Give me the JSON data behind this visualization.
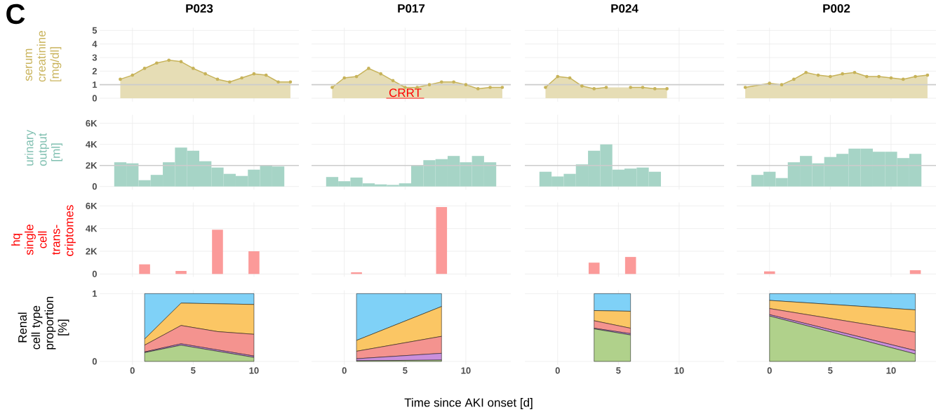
{
  "chart_data": [
    {
      "type": "area",
      "title": "P023",
      "ylabel": "serum creatinine [mg/dl]",
      "annotations": [
        "C"
      ],
      "x": [
        -1,
        0,
        1,
        2,
        3,
        4,
        5,
        6,
        7,
        8,
        9,
        10,
        11,
        12,
        13
      ],
      "values": [
        1.4,
        1.7,
        2.2,
        2.6,
        2.8,
        2.7,
        2.2,
        1.8,
        1.4,
        1.2,
        1.5,
        1.8,
        1.7,
        1.2,
        1.2
      ],
      "color": "#c7b35a",
      "marker": "circle",
      "xlim": [
        -2.7,
        13.7
      ],
      "xticks": [
        0,
        5,
        10
      ],
      "ylim": [
        -0.25,
        5.2
      ],
      "yticks": [
        0,
        1,
        2,
        3,
        4,
        5
      ],
      "tick_labels": "y",
      "grid": true,
      "ref_lines": [
        {
          "axis": "y",
          "value": 1,
          "color": "#cccccc"
        }
      ]
    },
    {
      "type": "area",
      "title": "P017",
      "annotations": [
        "CRRT"
      ],
      "x": [
        -1,
        0,
        1,
        2,
        3,
        4,
        5,
        6,
        7,
        8,
        9,
        10,
        11,
        12,
        13
      ],
      "values": [
        0.8,
        1.5,
        1.6,
        2.2,
        1.8,
        1.3,
        0.8,
        0.8,
        1.0,
        1.2,
        1.2,
        1.0,
        0.7,
        0.8,
        0.8
      ],
      "color": "#c7b35a",
      "marker": "circle",
      "xlim": [
        -2.7,
        13.7
      ],
      "xticks": [
        0,
        5,
        10
      ],
      "ylim": [
        -0.25,
        5.2
      ],
      "yticks": [
        0,
        1,
        2,
        3,
        4,
        5
      ],
      "tick_labels": false,
      "grid": true,
      "ref_lines": [
        {
          "axis": "y",
          "value": 1,
          "color": "#cccccc"
        }
      ]
    },
    {
      "type": "area",
      "title": "P024",
      "x": [
        -1,
        0,
        1,
        2,
        3,
        4,
        5,
        6,
        7,
        8,
        9
      ],
      "values": [
        0.8,
        1.6,
        1.5,
        0.9,
        0.7,
        0.8,
        null,
        0.8,
        0.8,
        0.7,
        0.7
      ],
      "color": "#c7b35a",
      "marker": "circle",
      "xlim": [
        -2.7,
        13.7
      ],
      "xticks": [
        0,
        5,
        10
      ],
      "ylim": [
        -0.25,
        5.2
      ],
      "yticks": [
        0,
        1,
        2,
        3,
        4,
        5
      ],
      "tick_labels": false,
      "grid": true,
      "ref_lines": [
        {
          "axis": "y",
          "value": 1,
          "color": "#cccccc"
        }
      ]
    },
    {
      "type": "area",
      "title": "P002",
      "x": [
        -2,
        0,
        1,
        2,
        3,
        4,
        5,
        6,
        7,
        8,
        9,
        10,
        11,
        12,
        13
      ],
      "values": [
        0.8,
        1.1,
        1.0,
        1.4,
        1.9,
        1.7,
        1.6,
        1.8,
        1.9,
        1.6,
        1.6,
        1.5,
        1.4,
        1.6,
        1.7
      ],
      "color": "#c7b35a",
      "marker": "circle",
      "xlim": [
        -2.7,
        13.7
      ],
      "xticks": [
        0,
        5,
        10
      ],
      "ylim": [
        -0.25,
        5.2
      ],
      "yticks": [
        0,
        1,
        2,
        3,
        4,
        5
      ],
      "tick_labels": false,
      "grid": true,
      "ref_lines": [
        {
          "axis": "y",
          "value": 1,
          "color": "#cccccc"
        }
      ]
    },
    {
      "type": "bar",
      "ylabel": "urinary output [ml]",
      "x": [
        -1,
        0,
        1,
        2,
        3,
        4,
        5,
        6,
        7,
        8,
        9,
        10,
        11,
        12
      ],
      "values": [
        2300,
        2200,
        600,
        1100,
        2300,
        3700,
        3400,
        2400,
        1800,
        1200,
        1000,
        1600,
        2000,
        1900
      ],
      "color": "#a6d4c6",
      "xlim": [
        -2.7,
        13.7
      ],
      "xticks": [
        0,
        5,
        10
      ],
      "ylim": [
        -300,
        6800
      ],
      "yticks": [
        0,
        {
          "value": 2000,
          "label": "2K"
        },
        {
          "value": 4000,
          "label": "4K"
        },
        {
          "value": 6000,
          "label": "6K"
        }
      ],
      "tick_labels": "y",
      "grid": true,
      "ref_lines": [
        {
          "axis": "y",
          "value": 2000,
          "color": "#cccccc"
        }
      ]
    },
    {
      "type": "bar",
      "x": [
        -1,
        0,
        1,
        2,
        3,
        4,
        5,
        6,
        7,
        8,
        9,
        10,
        11,
        12
      ],
      "values": [
        900,
        500,
        850,
        300,
        200,
        150,
        300,
        2000,
        2500,
        2600,
        2900,
        2300,
        2900,
        2300
      ],
      "color": "#a6d4c6",
      "xlim": [
        -2.7,
        13.7
      ],
      "xticks": [
        0,
        5,
        10
      ],
      "ylim": [
        -300,
        6800
      ],
      "yticks": [
        0,
        2000,
        4000,
        6000
      ],
      "tick_labels": false,
      "grid": true,
      "ref_lines": [
        {
          "axis": "y",
          "value": 2000,
          "color": "#cccccc"
        }
      ]
    },
    {
      "type": "bar",
      "x": [
        -1,
        0,
        1,
        2,
        3,
        4,
        5,
        6,
        7,
        8
      ],
      "values": [
        1400,
        950,
        1200,
        2100,
        3400,
        4000,
        1600,
        1700,
        1800,
        1400
      ],
      "color": "#a6d4c6",
      "xlim": [
        -2.7,
        13.7
      ],
      "xticks": [
        0,
        5,
        10
      ],
      "ylim": [
        -300,
        6800
      ],
      "yticks": [
        0,
        2000,
        4000,
        6000
      ],
      "tick_labels": false,
      "grid": true,
      "ref_lines": [
        {
          "axis": "y",
          "value": 2000,
          "color": "#cccccc"
        }
      ]
    },
    {
      "type": "bar",
      "x": [
        -1,
        0,
        1,
        2,
        3,
        4,
        5,
        6,
        7,
        8,
        9,
        10,
        11,
        12
      ],
      "values": [
        1100,
        1400,
        800,
        2300,
        2900,
        2200,
        2800,
        3100,
        3600,
        3600,
        3300,
        3300,
        2700,
        3100
      ],
      "color": "#a6d4c6",
      "xlim": [
        -2.7,
        13.7
      ],
      "xticks": [
        0,
        5,
        10
      ],
      "ylim": [
        -300,
        6800
      ],
      "yticks": [
        0,
        2000,
        4000,
        6000
      ],
      "tick_labels": false,
      "grid": true,
      "ref_lines": [
        {
          "axis": "y",
          "value": 2000,
          "color": "#cccccc"
        }
      ]
    },
    {
      "type": "bar",
      "ylabel": "hq single cell trans-criptomes",
      "x": [
        1,
        4,
        7,
        10
      ],
      "values": [
        850,
        270,
        3900,
        2000
      ],
      "color": "#fb9a99",
      "xlim": [
        -2.7,
        13.7
      ],
      "xticks": [
        0,
        5,
        10
      ],
      "ylim": [
        -250,
        6300
      ],
      "yticks": [
        0,
        {
          "value": 2000,
          "label": "2K"
        },
        {
          "value": 4000,
          "label": "4K"
        },
        {
          "value": 6000,
          "label": "6K"
        }
      ],
      "tick_labels": "y",
      "grid": true
    },
    {
      "type": "bar",
      "x": [
        1,
        8
      ],
      "values": [
        150,
        5900
      ],
      "color": "#fb9a99",
      "xlim": [
        -2.7,
        13.7
      ],
      "xticks": [
        0,
        5,
        10
      ],
      "ylim": [
        -250,
        6300
      ],
      "yticks": [
        0,
        2000,
        4000,
        6000
      ],
      "tick_labels": false,
      "grid": true
    },
    {
      "type": "bar",
      "x": [
        3,
        6
      ],
      "values": [
        1000,
        1500
      ],
      "color": "#fb9a99",
      "xlim": [
        -2.7,
        13.7
      ],
      "xticks": [
        0,
        5,
        10
      ],
      "ylim": [
        -250,
        6300
      ],
      "yticks": [
        0,
        2000,
        4000,
        6000
      ],
      "tick_labels": false,
      "grid": true
    },
    {
      "type": "bar",
      "x": [
        0,
        12
      ],
      "values": [
        230,
        330
      ],
      "color": "#fb9a99",
      "xlim": [
        -2.7,
        13.7
      ],
      "xticks": [
        0,
        5,
        10
      ],
      "ylim": [
        -250,
        6300
      ],
      "yticks": [
        0,
        2000,
        4000,
        6000
      ],
      "tick_labels": false,
      "grid": true
    },
    {
      "type": "area",
      "stacked": true,
      "ylabel": "Renal cell type proportion [%]",
      "x": [
        1,
        4,
        7,
        10
      ],
      "series": [
        {
          "color": "#b0d18b",
          "values": [
            0.13,
            0.24,
            0.15,
            0.06
          ]
        },
        {
          "color": "#c98fdc",
          "values": [
            0.01,
            0.02,
            0.02,
            0.02
          ]
        },
        {
          "color": "#f4938f",
          "values": [
            0.1,
            0.27,
            0.27,
            0.32
          ]
        },
        {
          "color": "#fbc664",
          "values": [
            0.09,
            0.33,
            0.41,
            0.44
          ]
        },
        {
          "color": "#7fd1f7",
          "values": [
            0.67,
            0.14,
            0.15,
            0.16
          ]
        }
      ],
      "xlim": [
        -2.7,
        13.7
      ],
      "xticks": [
        0,
        5,
        10
      ],
      "ylim": [
        -0.05,
        1.05
      ],
      "yticks": [
        0,
        1
      ],
      "grid": true
    },
    {
      "type": "area",
      "stacked": true,
      "xlabel": "Time since AKI onset [d]",
      "x": [
        1,
        8
      ],
      "series": [
        {
          "color": "#b0d18b",
          "values": [
            0.01,
            0.02
          ]
        },
        {
          "color": "#c98fdc",
          "values": [
            0.03,
            0.1
          ]
        },
        {
          "color": "#f4938f",
          "values": [
            0.11,
            0.25
          ]
        },
        {
          "color": "#fbc664",
          "values": [
            0.16,
            0.44
          ]
        },
        {
          "color": "#7fd1f7",
          "values": [
            0.69,
            0.19
          ]
        }
      ],
      "xlim": [
        -2.7,
        13.7
      ],
      "xticks": [
        0,
        5,
        10
      ],
      "ylim": [
        -0.05,
        1.05
      ],
      "yticks": [
        0,
        1
      ],
      "tick_labels": "x",
      "grid": true
    },
    {
      "type": "area",
      "stacked": true,
      "x": [
        3,
        6
      ],
      "series": [
        {
          "color": "#b0d18b",
          "values": [
            0.48,
            0.39
          ]
        },
        {
          "color": "#c98fdc",
          "values": [
            0.01,
            0.02
          ]
        },
        {
          "color": "#f4938f",
          "values": [
            0.11,
            0.08
          ]
        },
        {
          "color": "#fbc664",
          "values": [
            0.15,
            0.25
          ]
        },
        {
          "color": "#7fd1f7",
          "values": [
            0.25,
            0.26
          ]
        }
      ],
      "xlim": [
        -2.7,
        13.7
      ],
      "xticks": [
        0,
        5,
        10
      ],
      "ylim": [
        -0.05,
        1.05
      ],
      "yticks": [
        0,
        1
      ],
      "tick_labels": "x",
      "grid": true
    },
    {
      "type": "area",
      "stacked": true,
      "x": [
        0,
        12
      ],
      "series": [
        {
          "color": "#b0d18b",
          "values": [
            0.67,
            0.11
          ]
        },
        {
          "color": "#c98fdc",
          "values": [
            0.02,
            0.05
          ]
        },
        {
          "color": "#f4938f",
          "values": [
            0.09,
            0.27
          ]
        },
        {
          "color": "#fbc664",
          "values": [
            0.12,
            0.33
          ]
        },
        {
          "color": "#7fd1f7",
          "values": [
            0.1,
            0.24
          ]
        }
      ],
      "xlim": [
        -2.7,
        13.7
      ],
      "xticks": [
        0,
        5,
        10
      ],
      "ylim": [
        -0.05,
        1.05
      ],
      "yticks": [
        0,
        1
      ],
      "tick_labels": "x",
      "grid": true
    }
  ]
}
